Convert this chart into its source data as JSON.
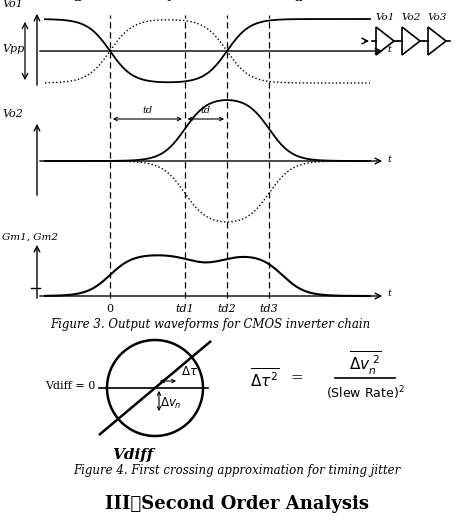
{
  "fig_width": 4.74,
  "fig_height": 5.26,
  "dpi": 100,
  "bg_color": "#ffffff",
  "fig3_caption": "Figure 3. Output waveforms for CMOS inverter chain",
  "fig4_caption": "Figure 4. First crossing approximation for timing jitter",
  "section_title": "III。  Second Order Analysis",
  "panel1_label": "Vo1",
  "panel2_label": "Vo2",
  "panel3_label": "Gm1, Gm2",
  "vpp_label": "Vpp",
  "region_labels": [
    "II",
    "I",
    "II"
  ],
  "time_labels": [
    "0",
    "td1",
    "td2",
    "td3"
  ],
  "td_label": "td",
  "inv_labels": [
    "Vo1",
    "Vo2",
    "Vo3"
  ],
  "vdiff0_label": "Vdiff = 0",
  "vdiff_label": "Vdiff",
  "dtau_label": "Δτ",
  "dvn_label": "Δv_n"
}
